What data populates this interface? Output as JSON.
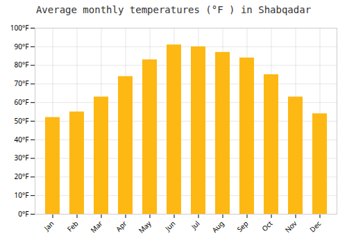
{
  "chart_data": {
    "type": "bar",
    "title": "Average monthly temperatures (°F ) in Shabqadar",
    "categories": [
      "Jan",
      "Feb",
      "Mar",
      "Apr",
      "May",
      "Jun",
      "Jul",
      "Aug",
      "Sep",
      "Oct",
      "Nov",
      "Dec"
    ],
    "values": [
      52,
      55,
      63,
      74,
      83,
      91,
      90,
      87,
      84,
      75,
      63,
      54
    ],
    "color": "#FDB813",
    "ylim": [
      0,
      100
    ],
    "yticks": [
      {
        "value": 0,
        "label": "0°F"
      },
      {
        "value": 10,
        "label": "10°F"
      },
      {
        "value": 20,
        "label": "20°F"
      },
      {
        "value": 30,
        "label": "30°F"
      },
      {
        "value": 40,
        "label": "40°F"
      },
      {
        "value": 50,
        "label": "50°F"
      },
      {
        "value": 60,
        "label": "60°F"
      },
      {
        "value": 70,
        "label": "70°F"
      },
      {
        "value": 80,
        "label": "80°F"
      },
      {
        "value": 90,
        "label": "90°F"
      },
      {
        "value": 100,
        "label": "100°F"
      }
    ],
    "grid": true
  }
}
